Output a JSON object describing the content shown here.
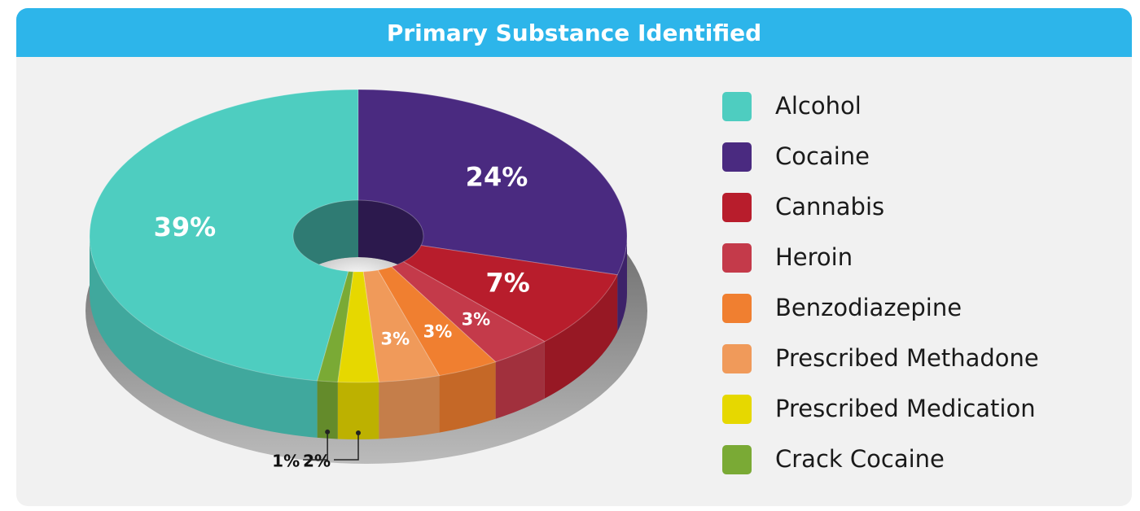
{
  "chart_data": {
    "type": "pie",
    "title": "Primary Substance Identified",
    "categories": [
      "Alcohol",
      "Cocaine",
      "Cannabis",
      "Heroin",
      "Benzodiazepine",
      "Prescribed Methadone",
      "Prescribed Medication",
      "Crack Cocaine"
    ],
    "values": [
      39,
      24,
      7,
      3,
      3,
      3,
      2,
      1
    ],
    "value_labels": [
      "39%",
      "24%",
      "7%",
      "3%",
      "3%",
      "3%",
      "2%",
      "1%"
    ],
    "colors": [
      "#4ecdc0",
      "#4a2a80",
      "#b81d2c",
      "#c43a4a",
      "#f07f30",
      "#f09a5a",
      "#e6d800",
      "#7aaa35"
    ],
    "legend": "right"
  }
}
